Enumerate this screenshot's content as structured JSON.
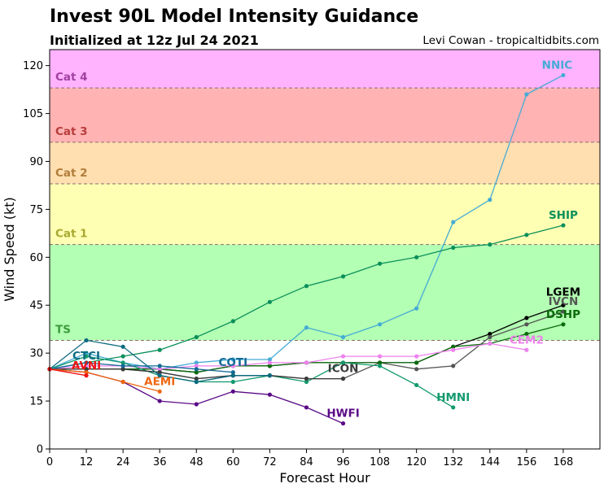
{
  "header": {
    "title": "Invest 90L Model Intensity Guidance",
    "subtitle": "Initialized at 12z Jul 24 2021",
    "credit": "Levi Cowan - tropicaltidbits.com"
  },
  "chart_data": {
    "type": "line",
    "xlabel": "Forecast Hour",
    "ylabel": "Wind Speed (kt)",
    "xlim": [
      0,
      180
    ],
    "ylim": [
      0,
      125
    ],
    "xticks": [
      0,
      12,
      24,
      36,
      48,
      60,
      72,
      84,
      96,
      108,
      120,
      132,
      144,
      156,
      168
    ],
    "yticks": [
      0,
      15,
      30,
      45,
      60,
      75,
      90,
      105,
      120
    ],
    "bands": [
      {
        "name": "TS",
        "from": 34,
        "to": 64,
        "fill": "#b3ffb3",
        "label_color": "#3d9b3d"
      },
      {
        "name": "Cat 1",
        "from": 64,
        "to": 83,
        "fill": "#ffffb3",
        "label_color": "#a8a832"
      },
      {
        "name": "Cat 2",
        "from": 83,
        "to": 96,
        "fill": "#ffdfb0",
        "label_color": "#b07d3a"
      },
      {
        "name": "Cat 3",
        "from": 96,
        "to": 113,
        "fill": "#ffb3b3",
        "label_color": "#b83c3c"
      },
      {
        "name": "Cat 4",
        "from": 113,
        "to": 125,
        "fill": "#ffb3ff",
        "label_color": "#a040a0"
      }
    ],
    "series": [
      {
        "name": "NNIC",
        "color": "#45abd6",
        "x": [
          0,
          12,
          24,
          36,
          48,
          60,
          72,
          84,
          96,
          108,
          120,
          132,
          144,
          156,
          168
        ],
        "y": [
          25,
          30,
          27,
          25,
          27,
          28,
          28,
          38,
          35,
          39,
          44,
          71,
          78,
          111,
          117
        ],
        "label_x": 166,
        "label_y": 119
      },
      {
        "name": "SHIP",
        "color": "#0b8f5a",
        "x": [
          0,
          12,
          24,
          36,
          48,
          60,
          72,
          84,
          96,
          108,
          120,
          132,
          144,
          156,
          168
        ],
        "y": [
          25,
          27,
          29,
          31,
          35,
          40,
          46,
          51,
          54,
          58,
          60,
          63,
          64,
          67,
          70
        ],
        "label_x": 168,
        "label_y": 72
      },
      {
        "name": "LGEM",
        "color": "#000000",
        "x": [
          0,
          12,
          24,
          36,
          48,
          60,
          72,
          84,
          96,
          108,
          120,
          132,
          144,
          156,
          168
        ],
        "y": [
          25,
          25,
          25,
          25,
          24,
          26,
          26,
          27,
          27,
          27,
          27,
          32,
          36,
          41,
          45
        ],
        "label_x": 168,
        "label_y": 48
      },
      {
        "name": "IVCN",
        "color": "#555555",
        "x": [
          0,
          12,
          24,
          36,
          48,
          60,
          72,
          84,
          96,
          108,
          120,
          132,
          144,
          156,
          168
        ],
        "y": [
          25,
          25,
          25,
          24,
          22,
          23,
          23,
          22,
          22,
          27,
          25,
          26,
          35,
          39,
          43
        ],
        "label_x": 168,
        "label_y": 45
      },
      {
        "name": "DSHP",
        "color": "#0a6b0a",
        "x": [
          0,
          12,
          24,
          36,
          48,
          60,
          72,
          84,
          96,
          108,
          120,
          132,
          144,
          156,
          168
        ],
        "y": [
          25,
          25,
          25,
          25,
          24,
          26,
          26,
          27,
          27,
          27,
          27,
          32,
          33,
          36,
          39
        ],
        "label_x": 168,
        "label_y": 41
      },
      {
        "name": "CEM2",
        "color": "#ee82ee",
        "x": [
          0,
          12,
          24,
          36,
          48,
          60,
          72,
          84,
          96,
          108,
          120,
          132,
          144,
          156
        ],
        "y": [
          25,
          26,
          26,
          25,
          26,
          26,
          27,
          27,
          29,
          29,
          29,
          31,
          33,
          31
        ],
        "label_x": 156,
        "label_y": 33
      },
      {
        "name": "HMNI",
        "color": "#139a6e",
        "x": [
          0,
          12,
          24,
          36,
          48,
          60,
          72,
          84,
          96,
          108,
          120,
          132
        ],
        "y": [
          25,
          29,
          27,
          23,
          21,
          21,
          23,
          21,
          27,
          26,
          20,
          13
        ],
        "label_x": 132,
        "label_y": 15
      },
      {
        "name": "ICON",
        "color": "#3c3c3c",
        "x": [
          0,
          12,
          24,
          36,
          48,
          60,
          72,
          84,
          96
        ],
        "y": [
          25,
          25,
          25,
          24,
          22,
          23,
          23,
          22,
          22
        ],
        "label_x": 96,
        "label_y": 24
      },
      {
        "name": "HWFI",
        "color": "#5a0a86",
        "x": [
          0,
          12,
          24,
          36,
          48,
          60,
          72,
          84,
          96
        ],
        "y": [
          25,
          24,
          21,
          15,
          14,
          18,
          17,
          13,
          8
        ],
        "label_x": 96,
        "label_y": 10
      },
      {
        "name": "COTI",
        "color": "#126a96",
        "x": [
          0,
          12,
          24,
          36,
          48,
          60
        ],
        "y": [
          25,
          27,
          26,
          26,
          25,
          24
        ],
        "label_x": 60,
        "label_y": 26
      },
      {
        "name": "CTCI",
        "color": "#0b6a80",
        "x": [
          0,
          12,
          24,
          36,
          48,
          60,
          72
        ],
        "y": [
          25,
          34,
          32,
          23,
          21,
          23,
          23
        ],
        "label_x": 12,
        "label_y": 28
      },
      {
        "name": "AEMI",
        "color": "#ee6611",
        "x": [
          0,
          12,
          24,
          36
        ],
        "y": [
          25,
          24,
          21,
          18
        ],
        "label_x": 36,
        "label_y": 20
      },
      {
        "name": "AVNI",
        "color": "#ee1111",
        "x": [
          0,
          12
        ],
        "y": [
          25,
          23
        ],
        "label_x": 12,
        "label_y": 25
      }
    ]
  }
}
